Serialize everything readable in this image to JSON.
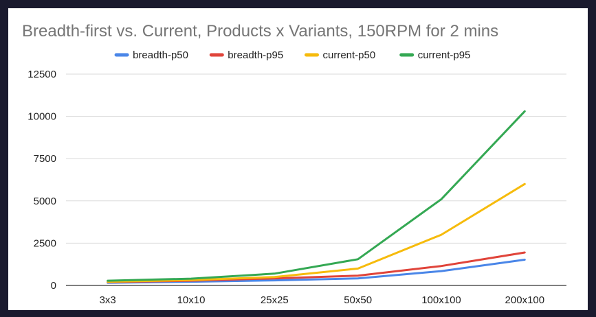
{
  "chart_data": {
    "type": "line",
    "title": "Breadth-first vs. Current, Products x Variants, 150RPM for 2 mins",
    "xlabel": "",
    "ylabel": "",
    "categories": [
      "3x3",
      "10x10",
      "25x25",
      "50x50",
      "100x100",
      "200x100"
    ],
    "ylim": [
      0,
      12500
    ],
    "yticks": [
      0,
      2500,
      5000,
      7500,
      10000,
      12500
    ],
    "grid": true,
    "legend_position": "top",
    "series": [
      {
        "name": "breadth-p50",
        "color": "#4a86e8",
        "values": [
          160,
          220,
          300,
          420,
          850,
          1520
        ]
      },
      {
        "name": "breadth-p95",
        "color": "#e0443a",
        "values": [
          200,
          280,
          420,
          580,
          1150,
          1950
        ]
      },
      {
        "name": "current-p50",
        "color": "#f6bb0c",
        "values": [
          220,
          320,
          500,
          1000,
          3000,
          6000
        ]
      },
      {
        "name": "current-p95",
        "color": "#34a853",
        "values": [
          280,
          400,
          700,
          1550,
          5100,
          10300
        ]
      }
    ]
  }
}
